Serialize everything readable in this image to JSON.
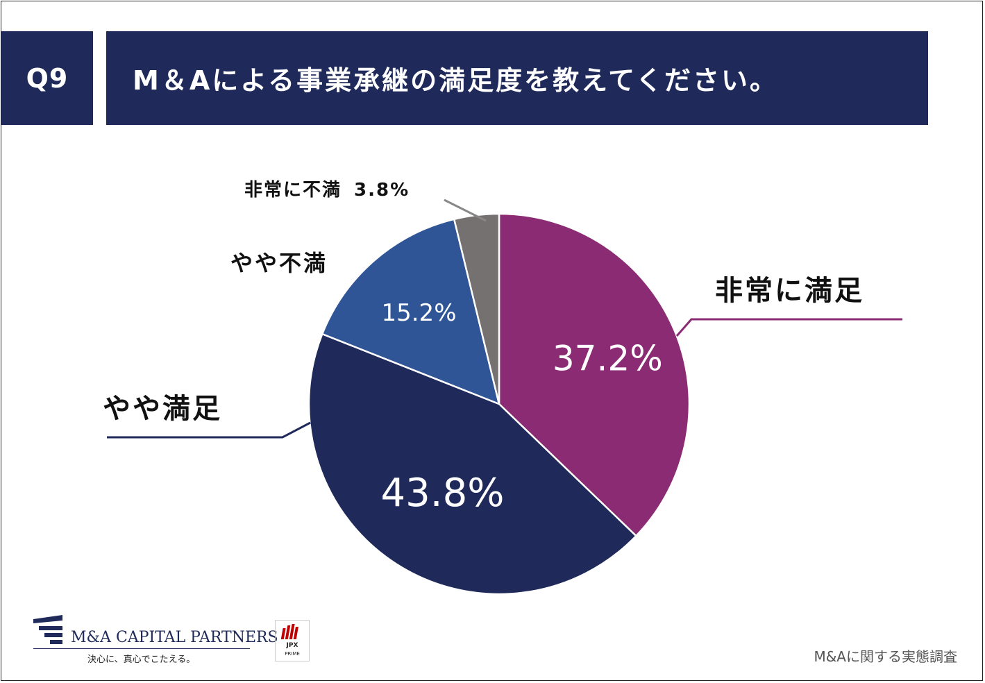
{
  "header": {
    "question_no": "Q9",
    "title": "M＆Aによる事業承継の満足度を教えてください。"
  },
  "chart_data": {
    "type": "pie",
    "title": "",
    "slices": [
      {
        "label": "非常に満足",
        "value": 37.2,
        "value_label": "37.2%",
        "color": "#8b2b73"
      },
      {
        "label": "やや満足",
        "value": 43.8,
        "value_label": "43.8%",
        "color": "#1f2a5a"
      },
      {
        "label": "やや不満",
        "value": 15.2,
        "value_label": "15.2%",
        "color": "#2f5596"
      },
      {
        "label": "非常に不満",
        "value": 3.8,
        "value_label": "3.8%",
        "color": "#767171"
      }
    ],
    "start": "12 o'clock",
    "direction": "clockwise",
    "legend": "none"
  },
  "footer": {
    "logo_name": "M&A CAPITAL PARTNERS",
    "logo_tagline": "決心に、真心でこたえる。",
    "jpx_label": "JPX",
    "jpx_sub": "PRIME",
    "survey_name": "M&Aに関する実態調査"
  }
}
